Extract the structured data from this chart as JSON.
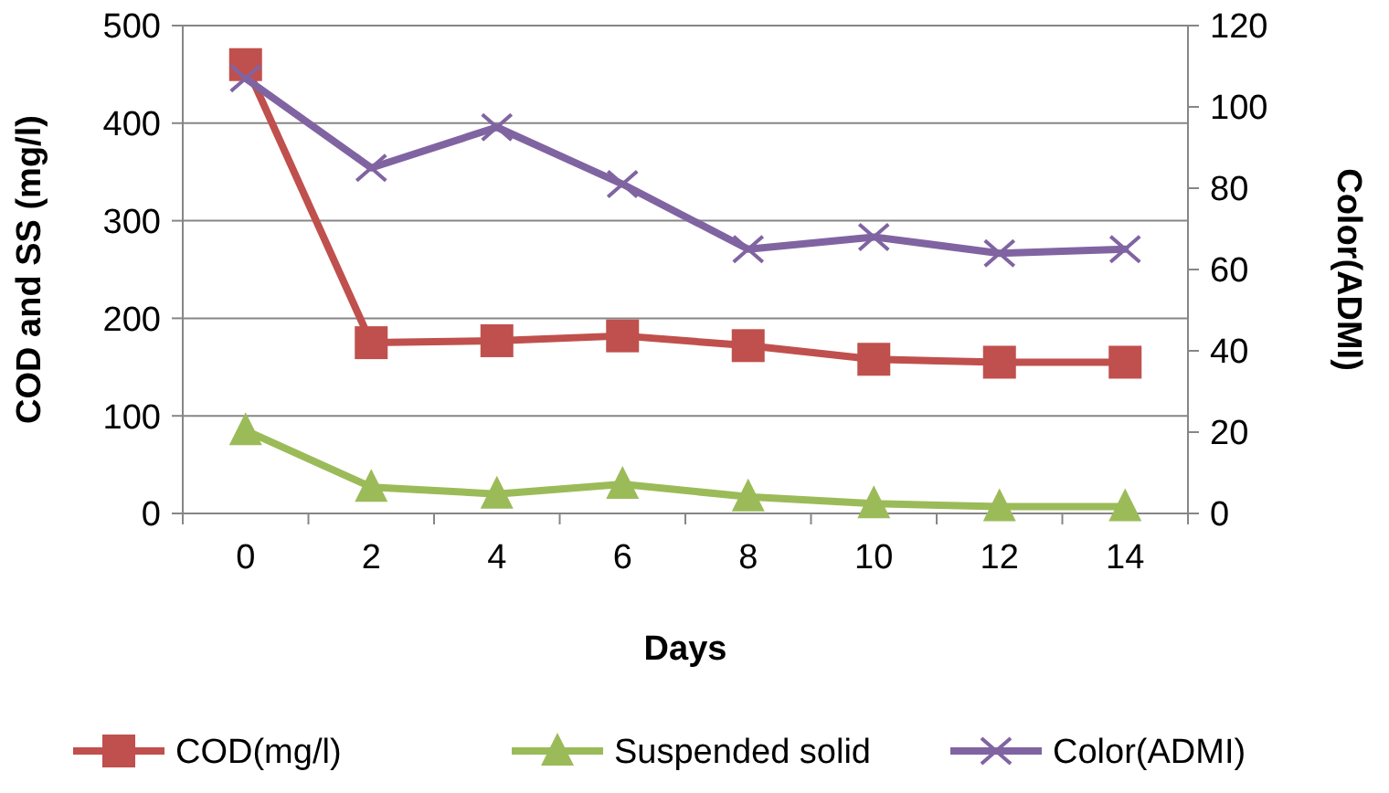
{
  "chart_data": {
    "type": "line",
    "xlabel": "Days",
    "ylabel": "COD and SS (mg/l)",
    "y2label": "Color(ADMI)",
    "categories": [
      "0",
      "2",
      "4",
      "6",
      "8",
      "10",
      "12",
      "14"
    ],
    "series": [
      {
        "name": "COD(mg/l)",
        "color": "#c0504d",
        "marker": "square",
        "values": [
          460,
          175,
          177,
          182,
          172,
          158,
          155,
          155
        ]
      },
      {
        "name": "Suspended solid",
        "color": "#9bbb59",
        "marker": "triangle",
        "values": [
          85,
          27,
          20,
          30,
          17,
          10,
          7,
          7
        ]
      },
      {
        "name": "Color(ADMI)",
        "color": "#8064a2",
        "marker": "cross",
        "axis": "y2",
        "values": [
          107,
          85,
          95,
          81,
          65,
          68,
          64,
          65
        ]
      }
    ],
    "ylim": [
      0,
      500
    ],
    "yticks": [
      0,
      100,
      200,
      300,
      400,
      500
    ],
    "y2lim": [
      0,
      120
    ],
    "y2ticks": [
      0,
      20,
      40,
      60,
      80,
      100,
      120
    ],
    "grid": "y",
    "legend": "bottom"
  }
}
